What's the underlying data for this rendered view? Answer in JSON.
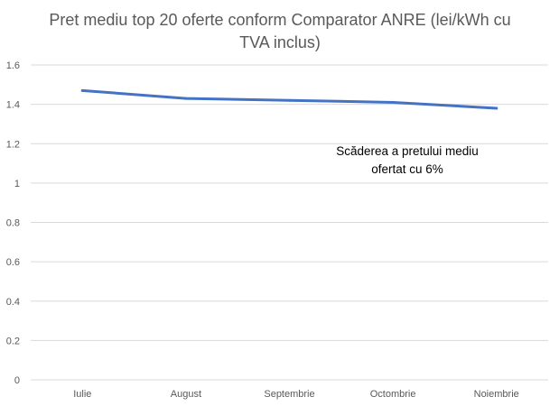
{
  "chart_data": {
    "type": "line",
    "title": "Pret mediu top 20 oferte conform Comparator ANRE (lei/kWh cu TVA inclus)",
    "categories": [
      "Iulie",
      "August",
      "Septembrie",
      "Octombrie",
      "Noiembrie"
    ],
    "series": [
      {
        "values": [
          1.47,
          1.43,
          1.42,
          1.41,
          1.38
        ]
      }
    ],
    "ylim": [
      0,
      1.6
    ],
    "yticks": [
      "0",
      "0.2",
      "0.4",
      "0.6",
      "0.8",
      "1",
      "1.2",
      "1.4",
      "1.6"
    ],
    "annotation": "Scăderea a pretului mediu ofertat cu 6%",
    "grid": true,
    "line_color": "#4472c4",
    "grid_color": "#d9d9d9",
    "text_color": "#595959"
  }
}
